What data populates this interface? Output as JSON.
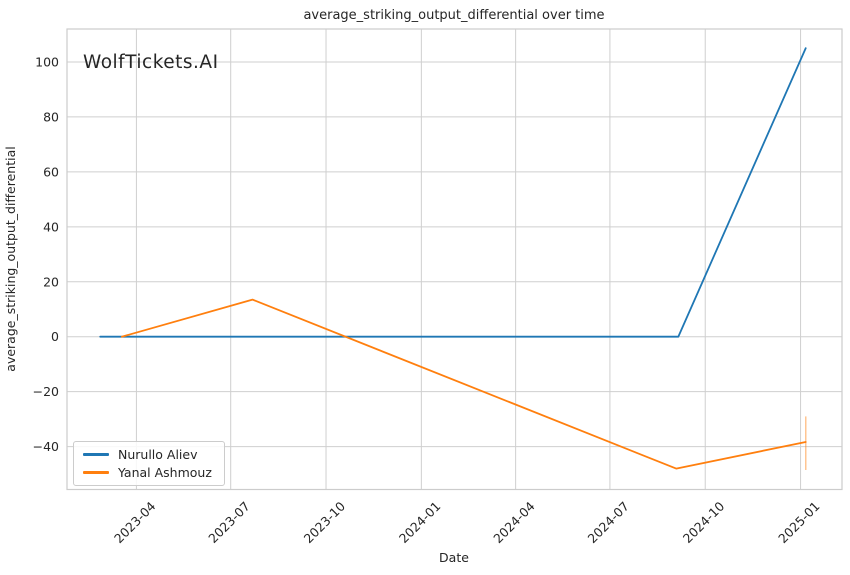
{
  "watermark": "WolfTickets.AI",
  "chart_data": {
    "type": "line",
    "title": "average_striking_output_differential over time",
    "xlabel": "Date",
    "ylabel": "average_striking_output_differential",
    "grid": true,
    "legend_position": "lower left",
    "background_color": "#ffffff",
    "grid_color": "#cfcfcf",
    "spine_color": "#cccccc",
    "text_color": "#262626",
    "watermark_color": "#d4d4d4",
    "xlim": [
      "2023-01-24",
      "2025-02-10"
    ],
    "ylim": [
      -55.6,
      112.0
    ],
    "x_ticks": [
      {
        "label": "2023-04",
        "date": "2023-04-01"
      },
      {
        "label": "2023-07",
        "date": "2023-07-01"
      },
      {
        "label": "2023-10",
        "date": "2023-10-01"
      },
      {
        "label": "2024-01",
        "date": "2024-01-01"
      },
      {
        "label": "2024-04",
        "date": "2024-04-01"
      },
      {
        "label": "2024-07",
        "date": "2024-07-01"
      },
      {
        "label": "2024-10",
        "date": "2024-10-01"
      },
      {
        "label": "2025-01",
        "date": "2025-01-01"
      }
    ],
    "y_ticks": [
      -40,
      -20,
      0,
      20,
      40,
      60,
      80,
      100
    ],
    "series": [
      {
        "name": "Nurullo Aliev",
        "color": "#1f77b4",
        "points": [
          {
            "date": "2023-02-25",
            "value": 0
          },
          {
            "date": "2024-09-05",
            "value": 0
          },
          {
            "date": "2025-01-06",
            "value": 105
          }
        ]
      },
      {
        "name": "Yanal Ashmouz",
        "color": "#ff7f0e",
        "points": [
          {
            "date": "2023-03-18",
            "value": 0
          },
          {
            "date": "2023-07-22",
            "value": 13.5
          },
          {
            "date": "2024-09-03",
            "value": -48
          },
          {
            "date": "2025-01-06",
            "value": -38.3,
            "error_low": -48.5,
            "error_high": -29
          }
        ]
      }
    ]
  }
}
